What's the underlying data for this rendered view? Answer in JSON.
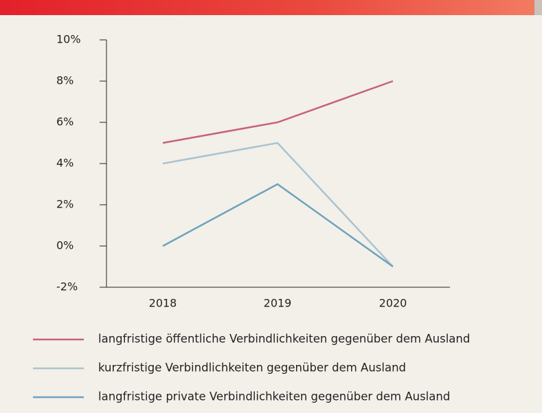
{
  "chart_data": {
    "type": "line",
    "categories": [
      "2018",
      "2019",
      "2020"
    ],
    "series": [
      {
        "name": "langfristige öffentliche Verbindlichkeiten gegenüber dem Ausland",
        "color": "#c8617e",
        "values": [
          5,
          6,
          8
        ]
      },
      {
        "name": "kurzfristige Verbindlichkeiten gegenüber dem Ausland",
        "color": "#aac3cf",
        "values": [
          4,
          5,
          -1
        ]
      },
      {
        "name": "langfristige private Verbindlichkeiten gegenüber dem Ausland",
        "color": "#6ea2bc",
        "values": [
          0,
          3,
          -1
        ]
      }
    ],
    "ylim": [
      -2,
      10
    ],
    "yticks": [
      {
        "value": -2,
        "label": "-2%"
      },
      {
        "value": 0,
        "label": "0%"
      },
      {
        "value": 2,
        "label": "2%"
      },
      {
        "value": 4,
        "label": "4%"
      },
      {
        "value": 6,
        "label": "6%"
      },
      {
        "value": 8,
        "label": "8%"
      },
      {
        "value": 10,
        "label": "10%"
      }
    ],
    "legend": "bottom"
  }
}
